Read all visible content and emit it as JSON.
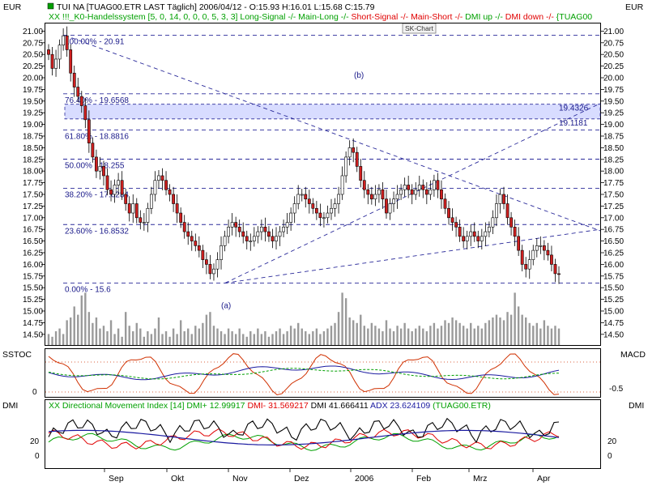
{
  "header": {
    "title": "TUI NA [TUAG00.ETR LAST Täglich] 2006/04/12 - O:15.93 H:16.01 L:15.68 C:15.79",
    "left_unit": "EUR",
    "right_unit": "EUR",
    "indicator_prefix": "XX !!!_K0-Handelssystem [5, 0, 14, 0, 0, 0, 5, 3, 3]",
    "indicator_items": [
      {
        "text": "Long-Signal -/-",
        "color": "#00a000"
      },
      {
        "text": "Main-Long -/-",
        "color": "#00a000"
      },
      {
        "text": "Short-Signal -/-",
        "color": "#e00000"
      },
      {
        "text": "Main-Short -/-",
        "color": "#e00000"
      },
      {
        "text": "DMI up -/-",
        "color": "#00a000"
      },
      {
        "text": "DMI down -/-",
        "color": "#e00000"
      },
      {
        "text": "{TUAG00",
        "color": "#00a000"
      }
    ],
    "sk_chart_label": "SK-Chart"
  },
  "panels": {
    "sstoc_label": "SSTOC",
    "macd_label": "MACD",
    "dmi_label_left": "DMI",
    "dmi_label_right": "DMI",
    "dmi_legend": [
      {
        "text": "XX Directional Movement Index [14]",
        "color": "#00a000"
      },
      {
        "text": "DMI+ 12.99917",
        "color": "#00a000"
      },
      {
        "text": "DMI- 31.569217",
        "color": "#e00000"
      },
      {
        "text": "DMI 41.666411",
        "color": "#000000"
      },
      {
        "text": "ADX 23.624109",
        "color": "#1a1aa0"
      },
      {
        "text": "(TUAG00.ETR)",
        "color": "#00a000"
      }
    ]
  },
  "colors": {
    "up_candle": "#ffffff",
    "down_candle": "#d02020",
    "wick": "#000000",
    "trendline": "#2a2a9a",
    "zone_fill": "#d8dcff",
    "volume": "#9a9a9a",
    "sstoc_line": "#d03000",
    "macd_line": "#1a1aa0",
    "signal_line": "#00a000",
    "dmi_plus": "#00a000",
    "dmi_minus": "#e00000",
    "dmi_line": "#000000",
    "adx_line": "#1a1aa0",
    "panel_dots": "#d03000"
  },
  "chart_data": {
    "type": "candlestick",
    "ylim": [
      14.4,
      21.1
    ],
    "y_ticks": [
      "21.00",
      "20.75",
      "20.50",
      "20.25",
      "20.00",
      "19.75",
      "19.50",
      "19.25",
      "19.00",
      "18.75",
      "18.50",
      "18.25",
      "18.00",
      "17.75",
      "17.50",
      "17.25",
      "17.00",
      "16.75",
      "16.50",
      "16.25",
      "16.00",
      "15.75",
      "15.50",
      "15.25",
      "15.00",
      "14.75",
      "14.50"
    ],
    "x_tick_labels": [
      "Sep",
      "Okt",
      "Nov",
      "Dez",
      "2006",
      "Feb",
      "Mrz",
      "Apr"
    ],
    "close_approx": [
      20.5,
      20.2,
      20.4,
      20.7,
      20.9,
      20.6,
      20.1,
      19.8,
      19.6,
      19.4,
      19.1,
      18.6,
      18.3,
      18.0,
      18.1,
      17.9,
      17.6,
      17.5,
      17.7,
      17.8,
      17.5,
      17.3,
      17.1,
      17.3,
      17.0,
      16.9,
      16.9,
      17.2,
      17.5,
      17.8,
      17.9,
      17.8,
      17.6,
      17.5,
      17.3,
      17.1,
      16.9,
      16.7,
      16.6,
      16.5,
      16.4,
      16.3,
      16.1,
      16.0,
      15.8,
      15.9,
      16.1,
      16.4,
      16.6,
      16.8,
      16.9,
      16.8,
      16.7,
      16.6,
      16.5,
      16.5,
      16.6,
      16.7,
      16.8,
      16.7,
      16.6,
      16.5,
      16.6,
      16.7,
      16.8,
      16.9,
      17.1,
      17.3,
      17.5,
      17.5,
      17.4,
      17.3,
      17.2,
      17.1,
      17.0,
      17.0,
      17.1,
      17.2,
      17.3,
      17.5,
      17.9,
      18.3,
      18.5,
      18.4,
      18.1,
      17.8,
      17.6,
      17.5,
      17.4,
      17.5,
      17.6,
      17.4,
      17.1,
      17.3,
      17.4,
      17.5,
      17.6,
      17.7,
      17.6,
      17.5,
      17.6,
      17.7,
      17.6,
      17.5,
      17.6,
      17.8,
      17.6,
      17.4,
      17.2,
      17.0,
      16.9,
      16.8,
      16.6,
      16.5,
      16.6,
      16.7,
      16.6,
      16.5,
      16.6,
      16.7,
      16.8,
      17.0,
      17.3,
      17.5,
      17.3,
      17.0,
      16.8,
      16.6,
      16.3,
      16.0,
      15.9,
      16.1,
      16.3,
      16.4,
      16.4,
      16.3,
      16.2,
      16.0,
      15.8,
      15.79
    ],
    "volume_approx": [
      0.2,
      0.15,
      0.25,
      0.3,
      0.2,
      0.45,
      0.5,
      0.7,
      0.55,
      0.9,
      0.95,
      0.6,
      0.4,
      0.5,
      0.3,
      0.35,
      0.25,
      0.45,
      0.2,
      0.3,
      0.15,
      0.6,
      0.35,
      0.25,
      0.4,
      0.3,
      0.15,
      0.25,
      0.2,
      0.3,
      0.5,
      0.2,
      0.25,
      0.15,
      0.3,
      0.2,
      0.45,
      0.25,
      0.3,
      0.2,
      0.35,
      0.3,
      0.4,
      0.55,
      0.6,
      0.35,
      0.3,
      0.25,
      0.2,
      0.3,
      0.25,
      0.2,
      0.3,
      0.2,
      0.15,
      0.25,
      0.2,
      0.3,
      0.2,
      0.25,
      0.15,
      0.2,
      0.25,
      0.3,
      0.2,
      0.25,
      0.35,
      0.3,
      0.4,
      0.3,
      0.25,
      0.2,
      0.25,
      0.3,
      0.2,
      0.25,
      0.3,
      0.35,
      0.4,
      0.6,
      0.95,
      0.85,
      0.5,
      0.45,
      0.4,
      0.55,
      0.35,
      0.3,
      0.4,
      0.35,
      0.3,
      0.25,
      0.45,
      0.3,
      0.25,
      0.35,
      0.3,
      0.4,
      0.3,
      0.25,
      0.3,
      0.35,
      0.3,
      0.25,
      0.35,
      0.4,
      0.3,
      0.35,
      0.45,
      0.4,
      0.5,
      0.45,
      0.4,
      0.35,
      0.3,
      0.4,
      0.3,
      0.35,
      0.3,
      0.4,
      0.45,
      0.5,
      0.55,
      0.5,
      0.45,
      0.6,
      0.55,
      0.95,
      0.7,
      0.55,
      0.5,
      0.4,
      0.35,
      0.4,
      0.3,
      0.45,
      0.35,
      0.3,
      0.35,
      0.3
    ],
    "fib_levels": [
      {
        "label": "100.00% - 20.91",
        "value": 20.91
      },
      {
        "label": "76.40% - 19.6568",
        "value": 19.6568
      },
      {
        "label": "61.80% - 18.8816",
        "value": 18.8816
      },
      {
        "label": "50.00% - 18.255",
        "value": 18.255
      },
      {
        "label": "38.20% - 17.6284",
        "value": 17.6284
      },
      {
        "label": "23.60% - 16.8532",
        "value": 16.8532
      },
      {
        "label": "0.00% - 15.6",
        "value": 15.6
      }
    ],
    "zone": {
      "top": 19.4326,
      "bottom": 19.1181,
      "top_label": "19.4326",
      "bottom_label": "19.1181"
    },
    "wave_labels": [
      {
        "text": "(b)",
        "value": 20.0
      },
      {
        "text": "(a)",
        "value": 15.3
      }
    ],
    "sstoc_ticks": [
      "0"
    ],
    "macd_ticks": [
      "-0.5"
    ],
    "dmi_ticks": [
      "20",
      "0"
    ]
  }
}
